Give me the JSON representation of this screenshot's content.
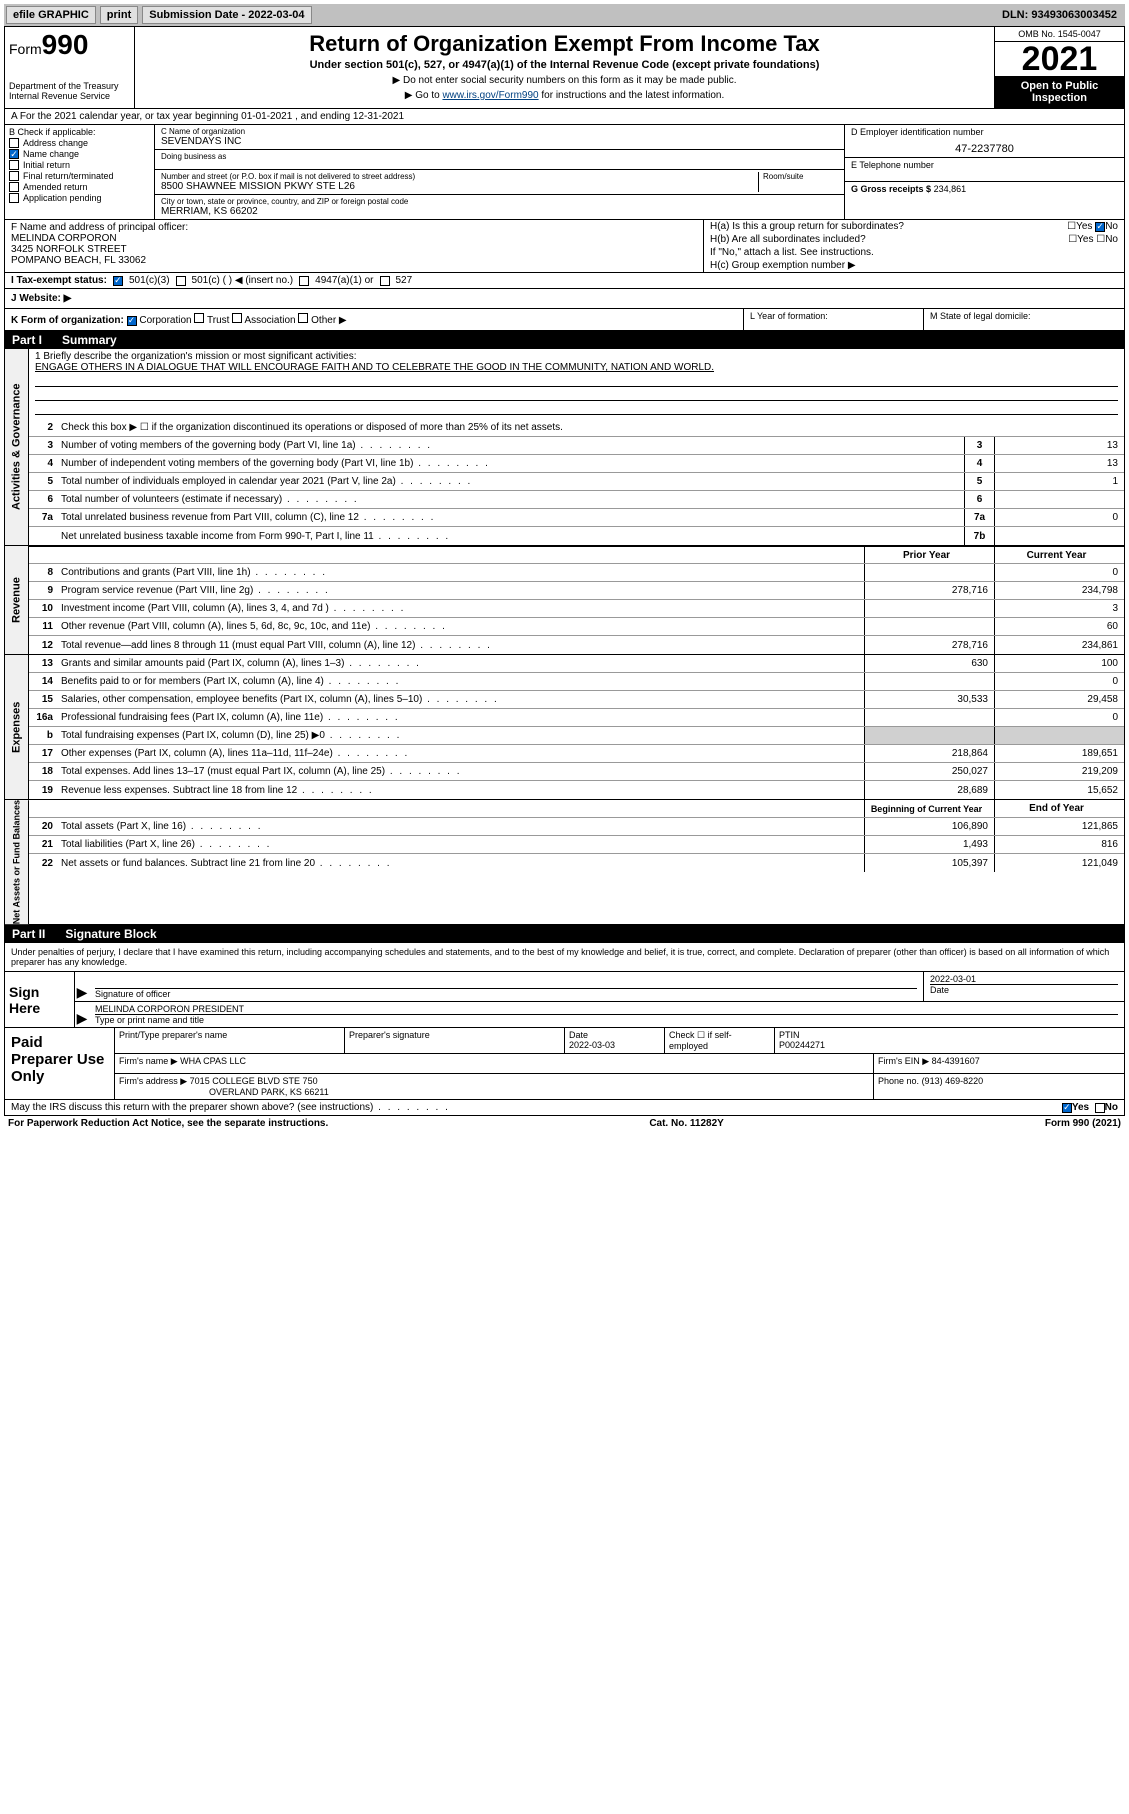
{
  "topbar": {
    "efile": "efile GRAPHIC",
    "print": "print",
    "sub_label": "Submission Date - 2022-03-04",
    "dln": "DLN: 93493063003452"
  },
  "header": {
    "form_prefix": "Form",
    "form_num": "990",
    "dept": "Department of the Treasury\nInternal Revenue Service",
    "title": "Return of Organization Exempt From Income Tax",
    "sub": "Under section 501(c), 527, or 4947(a)(1) of the Internal Revenue Code (except private foundations)",
    "note1": "▶ Do not enter social security numbers on this form as it may be made public.",
    "note2_pre": "▶ Go to ",
    "note2_link": "www.irs.gov/Form990",
    "note2_post": " for instructions and the latest information.",
    "omb": "OMB No. 1545-0047",
    "year": "2021",
    "inspection": "Open to Public Inspection"
  },
  "rowA": {
    "text": "A For the 2021 calendar year, or tax year beginning 01-01-2021    , and ending 12-31-2021"
  },
  "colB": {
    "label": "B Check if applicable:",
    "items": [
      {
        "label": "Address change",
        "checked": false
      },
      {
        "label": "Name change",
        "checked": true
      },
      {
        "label": "Initial return",
        "checked": false
      },
      {
        "label": "Final return/terminated",
        "checked": false
      },
      {
        "label": "Amended return",
        "checked": false
      },
      {
        "label": "Application pending",
        "checked": false
      }
    ]
  },
  "colC": {
    "name_label": "C Name of organization",
    "name": "SEVENDAYS INC",
    "dba_label": "Doing business as",
    "dba": "",
    "addr_label": "Number and street (or P.O. box if mail is not delivered to street address)",
    "addr": "8500 SHAWNEE MISSION PKWY STE L26",
    "room_label": "Room/suite",
    "city_label": "City or town, state or province, country, and ZIP or foreign postal code",
    "city": "MERRIAM, KS  66202"
  },
  "colDE": {
    "d_label": "D Employer identification number",
    "d_val": "47-2237780",
    "e_label": "E Telephone number",
    "e_val": "",
    "g_label": "G Gross receipts $",
    "g_val": "234,861"
  },
  "colF": {
    "label": "F Name and address of principal officer:",
    "name": "MELINDA CORPORON",
    "addr1": "3425 NORFOLK STREET",
    "addr2": "POMPANO BEACH, FL  33062"
  },
  "colH": {
    "ha": "H(a)  Is this a group return for subordinates?",
    "ha_no": "No",
    "hb": "H(b)  Are all subordinates included?",
    "hb_note": "If \"No,\" attach a list. See instructions.",
    "hc": "H(c)  Group exemption number ▶"
  },
  "rowI": {
    "label": "I   Tax-exempt status:",
    "opt1": "501(c)(3)",
    "opt2": "501(c) (  ) ◀ (insert no.)",
    "opt3": "4947(a)(1) or",
    "opt4": "527"
  },
  "rowJ": {
    "label": "J   Website: ▶"
  },
  "rowK": {
    "label": "K Form of organization:",
    "corp": "Corporation",
    "trust": "Trust",
    "assoc": "Association",
    "other": "Other ▶"
  },
  "rowL": {
    "label": "L Year of formation:"
  },
  "rowM": {
    "label": "M State of legal domicile:"
  },
  "part1": {
    "num": "Part I",
    "title": "Summary",
    "mission_label": "1   Briefly describe the organization's mission or most significant activities:",
    "mission": "ENGAGE OTHERS IN A DIALOGUE THAT WILL ENCOURAGE FAITH AND TO CELEBRATE THE GOOD IN THE COMMUNITY, NATION AND WORLD.",
    "line2": "Check this box ▶ ☐  if the organization discontinued its operations or disposed of more than 25% of its net assets.",
    "sideA": "Activities & Governance",
    "sideR": "Revenue",
    "sideE": "Expenses",
    "sideN": "Net Assets or Fund Balances",
    "lines_single": [
      {
        "n": "3",
        "t": "Number of voting members of the governing body (Part VI, line 1a)",
        "box": "3",
        "v": "13"
      },
      {
        "n": "4",
        "t": "Number of independent voting members of the governing body (Part VI, line 1b)",
        "box": "4",
        "v": "13"
      },
      {
        "n": "5",
        "t": "Total number of individuals employed in calendar year 2021 (Part V, line 2a)",
        "box": "5",
        "v": "1"
      },
      {
        "n": "6",
        "t": "Total number of volunteers (estimate if necessary)",
        "box": "6",
        "v": ""
      },
      {
        "n": "7a",
        "t": "Total unrelated business revenue from Part VIII, column (C), line 12",
        "box": "7a",
        "v": "0"
      },
      {
        "n": "",
        "t": "Net unrelated business taxable income from Form 990-T, Part I, line 11",
        "box": "7b",
        "v": ""
      }
    ],
    "col_prior": "Prior Year",
    "col_current": "Current Year",
    "lines_rev": [
      {
        "n": "8",
        "t": "Contributions and grants (Part VIII, line 1h)",
        "p": "",
        "c": "0"
      },
      {
        "n": "9",
        "t": "Program service revenue (Part VIII, line 2g)",
        "p": "278,716",
        "c": "234,798"
      },
      {
        "n": "10",
        "t": "Investment income (Part VIII, column (A), lines 3, 4, and 7d )",
        "p": "",
        "c": "3"
      },
      {
        "n": "11",
        "t": "Other revenue (Part VIII, column (A), lines 5, 6d, 8c, 9c, 10c, and 11e)",
        "p": "",
        "c": "60"
      },
      {
        "n": "12",
        "t": "Total revenue—add lines 8 through 11 (must equal Part VIII, column (A), line 12)",
        "p": "278,716",
        "c": "234,861"
      }
    ],
    "lines_exp": [
      {
        "n": "13",
        "t": "Grants and similar amounts paid (Part IX, column (A), lines 1–3)",
        "p": "630",
        "c": "100"
      },
      {
        "n": "14",
        "t": "Benefits paid to or for members (Part IX, column (A), line 4)",
        "p": "",
        "c": "0"
      },
      {
        "n": "15",
        "t": "Salaries, other compensation, employee benefits (Part IX, column (A), lines 5–10)",
        "p": "30,533",
        "c": "29,458"
      },
      {
        "n": "16a",
        "t": "Professional fundraising fees (Part IX, column (A), line 11e)",
        "p": "",
        "c": "0"
      },
      {
        "n": "b",
        "t": "Total fundraising expenses (Part IX, column (D), line 25) ▶0",
        "p": "",
        "c": "",
        "shade": true
      },
      {
        "n": "17",
        "t": "Other expenses (Part IX, column (A), lines 11a–11d, 11f–24e)",
        "p": "218,864",
        "c": "189,651"
      },
      {
        "n": "18",
        "t": "Total expenses. Add lines 13–17 (must equal Part IX, column (A), line 25)",
        "p": "250,027",
        "c": "219,209"
      },
      {
        "n": "19",
        "t": "Revenue less expenses. Subtract line 18 from line 12",
        "p": "28,689",
        "c": "15,652"
      }
    ],
    "col_begin": "Beginning of Current Year",
    "col_end": "End of Year",
    "lines_net": [
      {
        "n": "20",
        "t": "Total assets (Part X, line 16)",
        "p": "106,890",
        "c": "121,865"
      },
      {
        "n": "21",
        "t": "Total liabilities (Part X, line 26)",
        "p": "1,493",
        "c": "816"
      },
      {
        "n": "22",
        "t": "Net assets or fund balances. Subtract line 21 from line 20",
        "p": "105,397",
        "c": "121,049"
      }
    ]
  },
  "part2": {
    "num": "Part II",
    "title": "Signature Block",
    "intro": "Under penalties of perjury, I declare that I have examined this return, including accompanying schedules and statements, and to the best of my knowledge and belief, it is true, correct, and complete. Declaration of preparer (other than officer) is based on all information of which preparer has any knowledge.",
    "sign_here": "Sign Here",
    "sig_officer": "Signature of officer",
    "sig_date": "2022-03-01",
    "sig_date_label": "Date",
    "officer_name": "MELINDA CORPORON  PRESIDENT",
    "officer_name_label": "Type or print name and title",
    "paid": "Paid Preparer Use Only",
    "prep_name_label": "Print/Type preparer's name",
    "prep_sig_label": "Preparer's signature",
    "prep_date_label": "Date",
    "prep_date": "2022-03-03",
    "prep_check": "Check ☐ if self-employed",
    "ptin_label": "PTIN",
    "ptin": "P00244271",
    "firm_name_label": "Firm's name    ▶",
    "firm_name": "WHA CPAS LLC",
    "firm_ein_label": "Firm's EIN ▶",
    "firm_ein": "84-4391607",
    "firm_addr_label": "Firm's address ▶",
    "firm_addr1": "7015 COLLEGE BLVD STE 750",
    "firm_addr2": "OVERLAND PARK, KS  66211",
    "phone_label": "Phone no.",
    "phone": "(913) 469-8220",
    "may_irs": "May the IRS discuss this return with the preparer shown above? (see instructions)",
    "yes": "Yes",
    "no": "No"
  },
  "footer": {
    "pra": "For Paperwork Reduction Act Notice, see the separate instructions.",
    "cat": "Cat. No. 11282Y",
    "form": "Form 990 (2021)"
  },
  "colors": {
    "checked_bg": "#0066cc",
    "shade": "#d0d0d0",
    "link": "#004080"
  }
}
